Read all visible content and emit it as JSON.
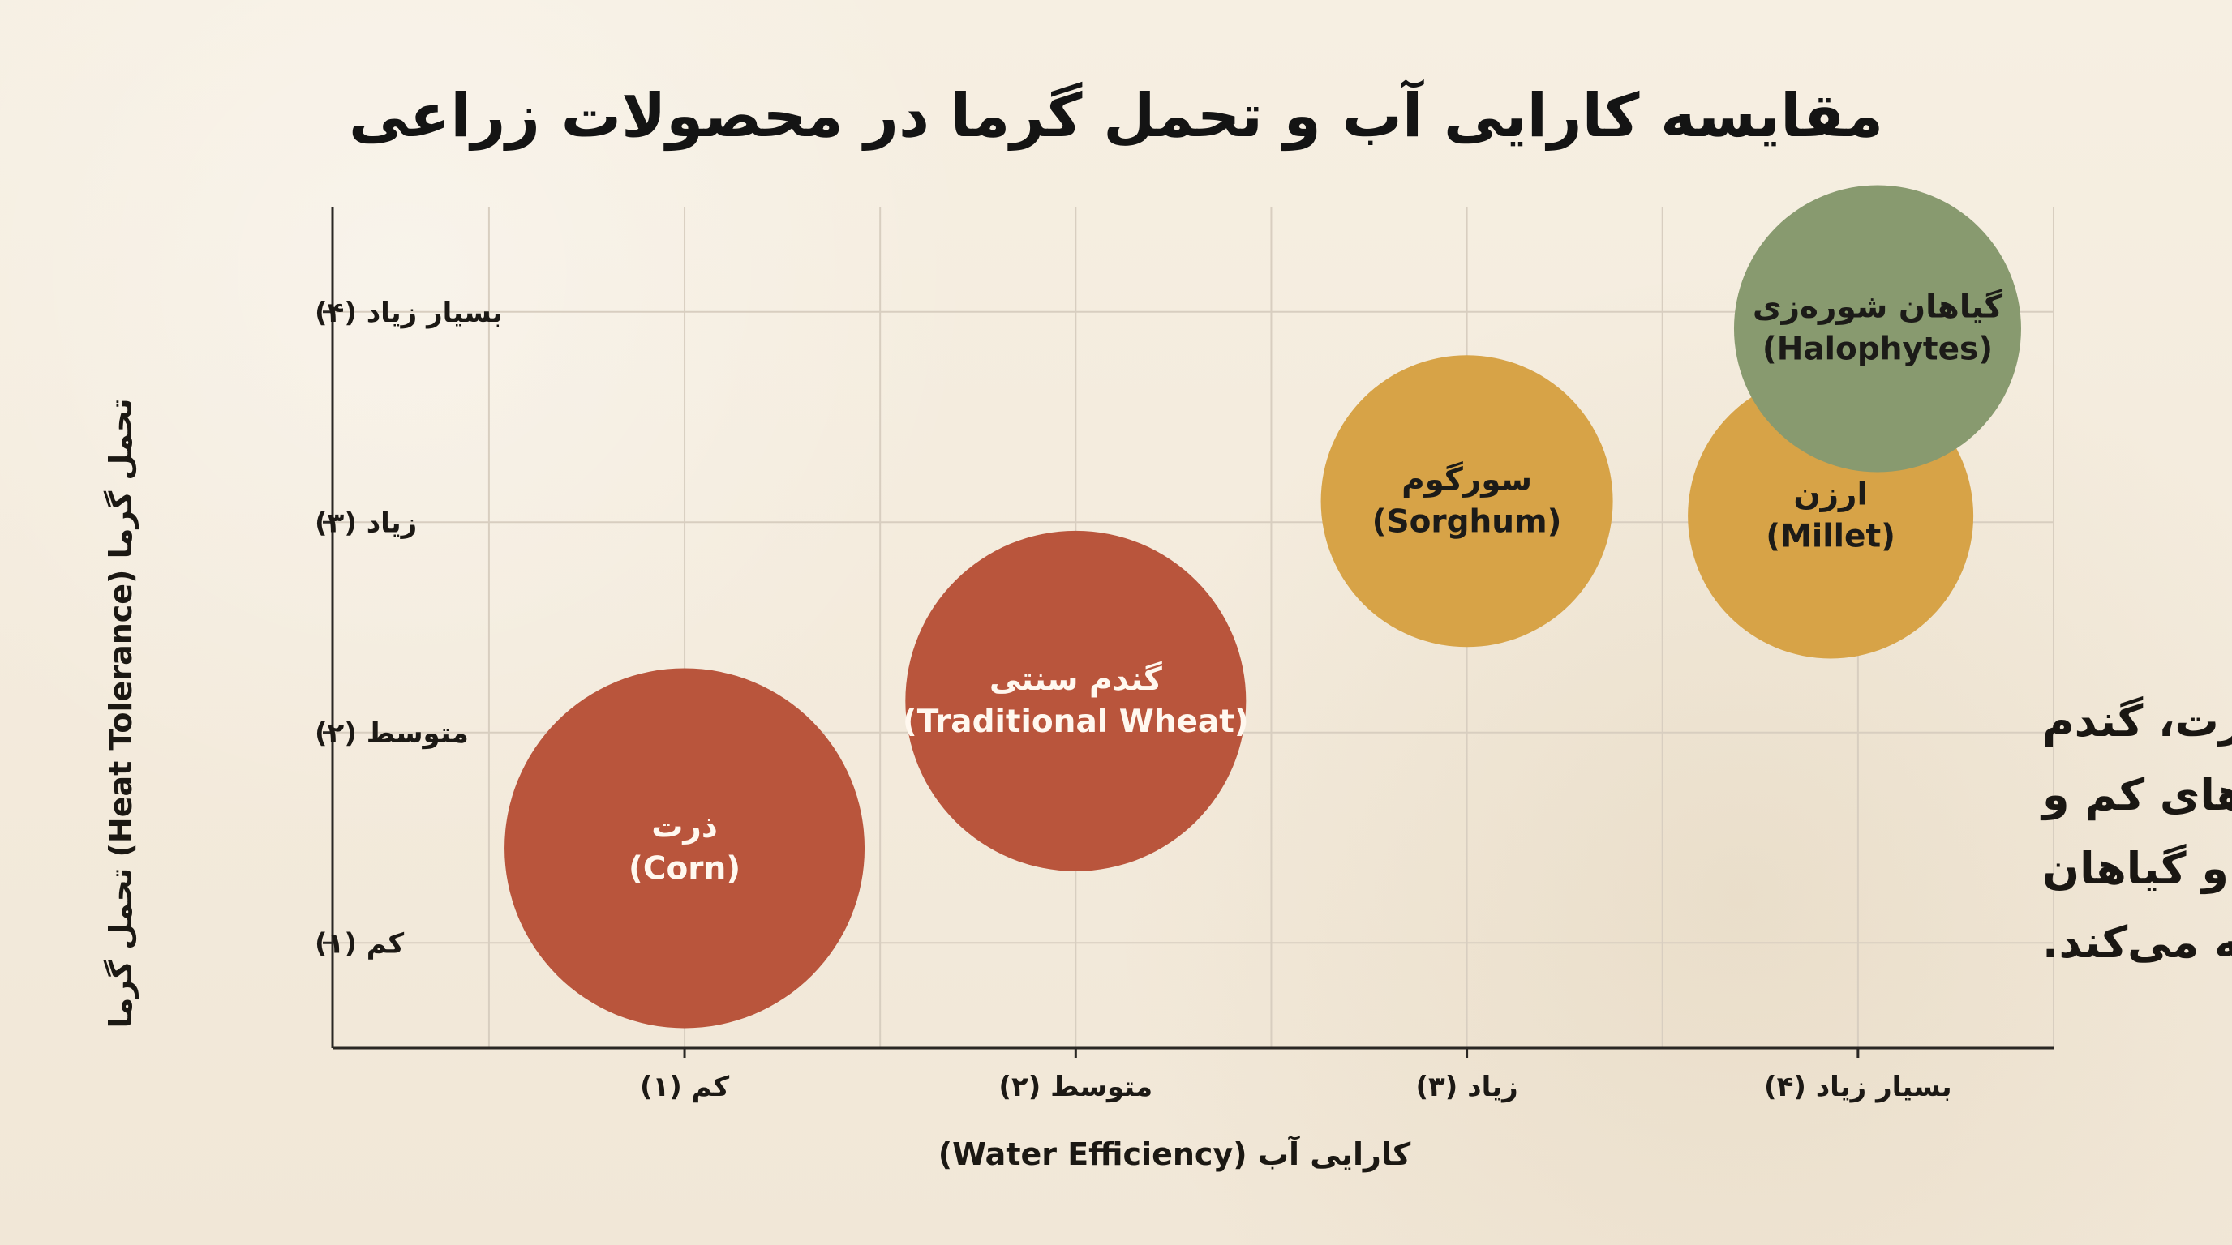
{
  "chart_data": {
    "type": "bubble",
    "title": "مقایسه کارایی آب و تحمل گرما در محصولات زراعی",
    "xlabel": "کارایی آب (Water Efficiency)",
    "ylabel": "تحمل گرما (Heat Tolerance) تحمل گرما",
    "grid": true,
    "xlim": [
      0.1,
      4.5
    ],
    "ylim": [
      0.5,
      4.5
    ],
    "x_ticks": [
      {
        "value": 1,
        "label": "کم (۱)"
      },
      {
        "value": 2,
        "label": "متوسط (۲)"
      },
      {
        "value": 3,
        "label": "زیاد (۳)"
      },
      {
        "value": 4,
        "label": "بسیار زیاد (۴)"
      }
    ],
    "y_ticks": [
      {
        "value": 1,
        "label": "کم (۱)"
      },
      {
        "value": 2,
        "label": "متوسط (۲)"
      },
      {
        "value": 3,
        "label": "زیاد (۳)"
      },
      {
        "value": 4,
        "label": "بسیار زیاد (۴)"
      }
    ],
    "points": [
      {
        "label_fa": "ذرت",
        "label_en": "(Corn)",
        "x": 1,
        "y": 1.45,
        "color": "#b9553c"
      },
      {
        "label_fa": "گندم سنتی",
        "label_en": "(Traditional Wheat)",
        "x": 2,
        "y": 2.15,
        "color": "#b9553c"
      },
      {
        "label_fa": "سورگوم",
        "label_en": "(Sorghum)",
        "x": 3,
        "y": 3.1,
        "color": "#d7a347"
      },
      {
        "label_fa": "ارزن",
        "label_en": "(Millet)",
        "x": 3.93,
        "y": 3.03,
        "color": "#d7a347"
      },
      {
        "label_fa": "گیاهان شوره‌زی",
        "label_en": "(Halophytes)",
        "x": 4.05,
        "y": 3.92,
        "color": "#889a6f"
      }
    ],
    "annotation": {
      "lines": [
        "نموداری که نیازهای آبی بالا در ذرت، گندم",
        "آبی کم درو گندم سنتی را با نیازهای کم و",
        "تحمل گرمای بالای سورگوم، ارزن و گیاهان",
        "شوره‌زابن و  گیاهازی مقایسه می‌کند."
      ]
    }
  }
}
